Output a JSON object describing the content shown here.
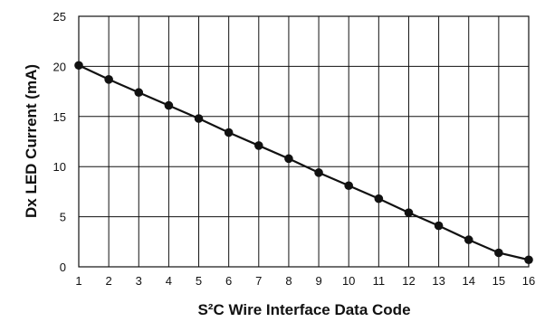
{
  "chart_data": {
    "type": "line",
    "title": "",
    "xlabel": "S²C Wire Interface Data Code",
    "ylabel": "Dx LED Current (mA)",
    "x": [
      1,
      2,
      3,
      4,
      5,
      6,
      7,
      8,
      9,
      10,
      11,
      12,
      13,
      14,
      15,
      16
    ],
    "series": [
      {
        "values": [
          20.1,
          18.7,
          17.4,
          16.1,
          14.8,
          13.4,
          12.1,
          10.8,
          9.4,
          8.1,
          6.8,
          5.4,
          4.1,
          2.7,
          1.4,
          0.7
        ]
      }
    ],
    "xlim": [
      1,
      16
    ],
    "ylim": [
      0,
      25
    ],
    "xticks": [
      "1",
      "2",
      "3",
      "4",
      "5",
      "6",
      "7",
      "8",
      "9",
      "10",
      "11",
      "12",
      "13",
      "14",
      "15",
      "16"
    ],
    "yticks": [
      "0",
      "5",
      "10",
      "15",
      "20",
      "25"
    ],
    "grid": true,
    "colors": {
      "line": "#111111",
      "marker": "#111111",
      "grid": "#111111",
      "background": "#ffffff"
    }
  }
}
